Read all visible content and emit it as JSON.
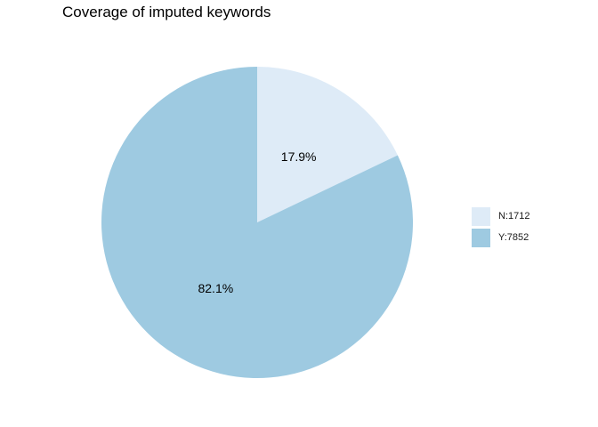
{
  "chart_data": {
    "type": "pie",
    "title": "Coverage of imputed keywords",
    "slices": [
      {
        "name": "N",
        "value": 1712,
        "percent_label": "17.9%",
        "legend_label": "N:1712",
        "color": "#deebf7"
      },
      {
        "name": "Y",
        "value": 7852,
        "percent_label": "82.1%",
        "legend_label": "Y:7852",
        "color": "#9ecae1"
      }
    ],
    "legend_position": "right",
    "start_angle": "12 o'clock, clockwise"
  }
}
